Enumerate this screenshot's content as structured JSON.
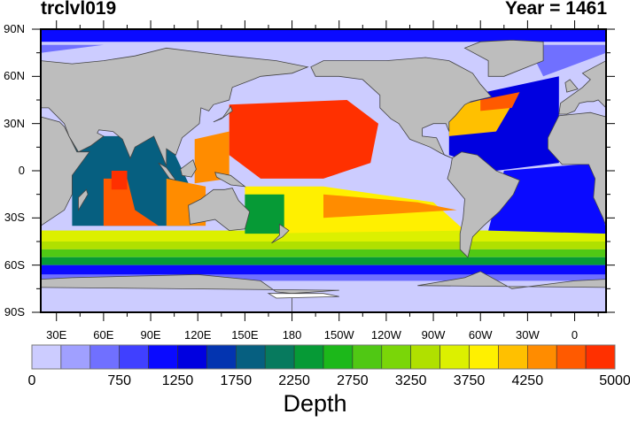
{
  "title": {
    "left": "trclvl019",
    "right": "Year = 1461"
  },
  "map": {
    "lat_labels": [
      "90N",
      "60N",
      "30N",
      "0",
      "30S",
      "60S",
      "90S"
    ],
    "lon_labels": [
      "30E",
      "60E",
      "90E",
      "120E",
      "150E",
      "180",
      "150W",
      "120W",
      "90W",
      "60W",
      "30W",
      "0"
    ],
    "land_color": "#bdbdbd",
    "projection_center": "180"
  },
  "colorbar": {
    "title": "Depth",
    "min": 0,
    "max": 5000,
    "interval": 250,
    "labels": [
      "0",
      "750",
      "1250",
      "1750",
      "2250",
      "2750",
      "3250",
      "3750",
      "4250",
      "5000"
    ],
    "colors": [
      "#ccccff",
      "#a0a0ff",
      "#7070ff",
      "#4040ff",
      "#0a0aff",
      "#0000e0",
      "#0334b0",
      "#065f80",
      "#077a5e",
      "#069a36",
      "#1cb81a",
      "#50c814",
      "#7ad608",
      "#b0e000",
      "#dcf000",
      "#fff000",
      "#ffc000",
      "#ff8c00",
      "#ff5a00",
      "#ff3000"
    ]
  }
}
